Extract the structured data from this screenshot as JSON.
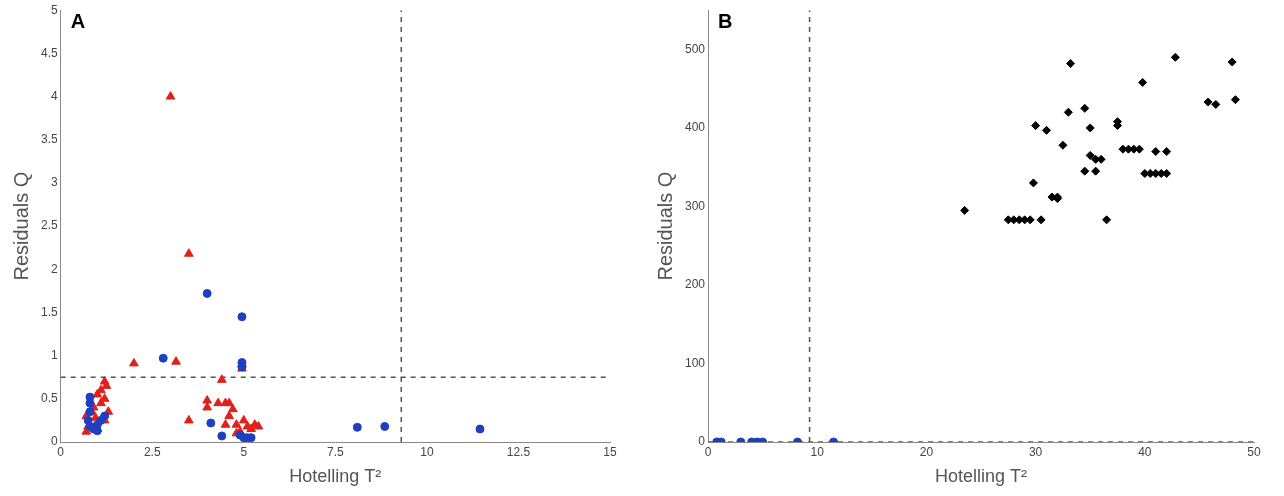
{
  "chart_data": [
    {
      "type": "scatter",
      "title": "A",
      "x_label": "Hotelling T²",
      "y_label": "Residuals Q",
      "xlim": [
        0,
        15
      ],
      "xticks": [
        0,
        2.5,
        5,
        7.5,
        10,
        12.5,
        15
      ],
      "ylim": [
        0,
        5
      ],
      "yticks": [
        0,
        0.5,
        1,
        1.5,
        2,
        2.5,
        3,
        3.5,
        4,
        4.5,
        5
      ],
      "grid": false,
      "limits": {
        "x": 9.3,
        "y": 0.75
      },
      "series": [
        {
          "color": "#1f3fbf",
          "marker": "circle",
          "x": [
            0.8,
            0.8,
            0.8,
            0.75,
            0.8,
            0.9,
            1.0,
            1.1,
            1.2,
            1.0,
            2.8,
            4.0,
            4.95,
            4.95,
            4.95,
            4.1,
            4.4,
            4.9,
            5.0,
            5.1,
            5.2,
            8.1,
            8.85,
            11.45
          ],
          "values": [
            0.52,
            0.45,
            0.35,
            0.25,
            0.18,
            0.15,
            0.2,
            0.25,
            0.3,
            0.13,
            0.97,
            1.72,
            1.45,
            0.92,
            0.87,
            0.22,
            0.07,
            0.08,
            0.05,
            0.05,
            0.05,
            0.17,
            0.18,
            0.15
          ]
        },
        {
          "color": "#e0201b",
          "marker": "triangle",
          "x": [
            3.0,
            3.5,
            2.0,
            3.15,
            4.95,
            4.95,
            4.4,
            3.5,
            4.0,
            4.0,
            4.3,
            4.5,
            4.6,
            4.7,
            4.6,
            4.8,
            4.9,
            5.0,
            5.1,
            5.2,
            5.3,
            5.4,
            4.8,
            4.5,
            1.2,
            1.25,
            1.1,
            1.0,
            1.2,
            0.9,
            0.7,
            0.8,
            0.7,
            1.0,
            1.3,
            1.1,
            0.85,
            1.2,
            0.75,
            0.95
          ],
          "values": [
            4.0,
            2.18,
            0.91,
            0.93,
            0.9,
            0.85,
            0.72,
            0.25,
            0.48,
            0.4,
            0.45,
            0.45,
            0.45,
            0.38,
            0.3,
            0.2,
            0.12,
            0.25,
            0.18,
            0.15,
            0.2,
            0.18,
            0.1,
            0.2,
            0.7,
            0.65,
            0.6,
            0.55,
            0.5,
            0.4,
            0.3,
            0.2,
            0.12,
            0.15,
            0.35,
            0.45,
            0.35,
            0.25,
            0.18,
            0.28
          ]
        }
      ]
    },
    {
      "type": "scatter",
      "title": "B",
      "x_label": "Hotelling T²",
      "y_label": "Residuals Q",
      "xlim": [
        0,
        50
      ],
      "xticks": [
        0,
        10,
        20,
        30,
        40,
        50
      ],
      "ylim": [
        0,
        550
      ],
      "yticks": [
        0,
        100,
        200,
        300,
        400,
        500
      ],
      "grid": false,
      "limits": {
        "x": 9.3,
        "y": 0
      },
      "series": [
        {
          "color": "#000000",
          "marker": "diamond",
          "x": [
            23.5,
            27.5,
            28,
            28.5,
            29,
            29.5,
            30.5,
            29.8,
            30,
            31,
            31.5,
            32,
            32,
            32.5,
            33,
            33.2,
            34.5,
            34.5,
            35,
            35,
            35.5,
            35.5,
            36,
            36.5,
            37.5,
            37.5,
            38,
            38.5,
            39,
            39.5,
            39.8,
            40,
            40.5,
            41,
            41,
            41.5,
            42,
            42,
            42.8,
            45.8,
            46.5,
            48,
            48.3
          ],
          "values": [
            295,
            283,
            283,
            283,
            283,
            283,
            283,
            330,
            403,
            397,
            312,
            312,
            310,
            378,
            420,
            482,
            425,
            345,
            365,
            400,
            345,
            360,
            360,
            283,
            403,
            408,
            373,
            373,
            373,
            373,
            458,
            342,
            342,
            370,
            342,
            342,
            370,
            342,
            490,
            433,
            430,
            484,
            436
          ]
        },
        {
          "color": "#1f3fbf",
          "marker": "circle",
          "x": [
            0.8,
            1.2,
            3,
            4,
            4.5,
            5,
            8.2,
            11.5
          ],
          "values": [
            0,
            0,
            0,
            0,
            0,
            0,
            0,
            0
          ]
        }
      ]
    }
  ]
}
